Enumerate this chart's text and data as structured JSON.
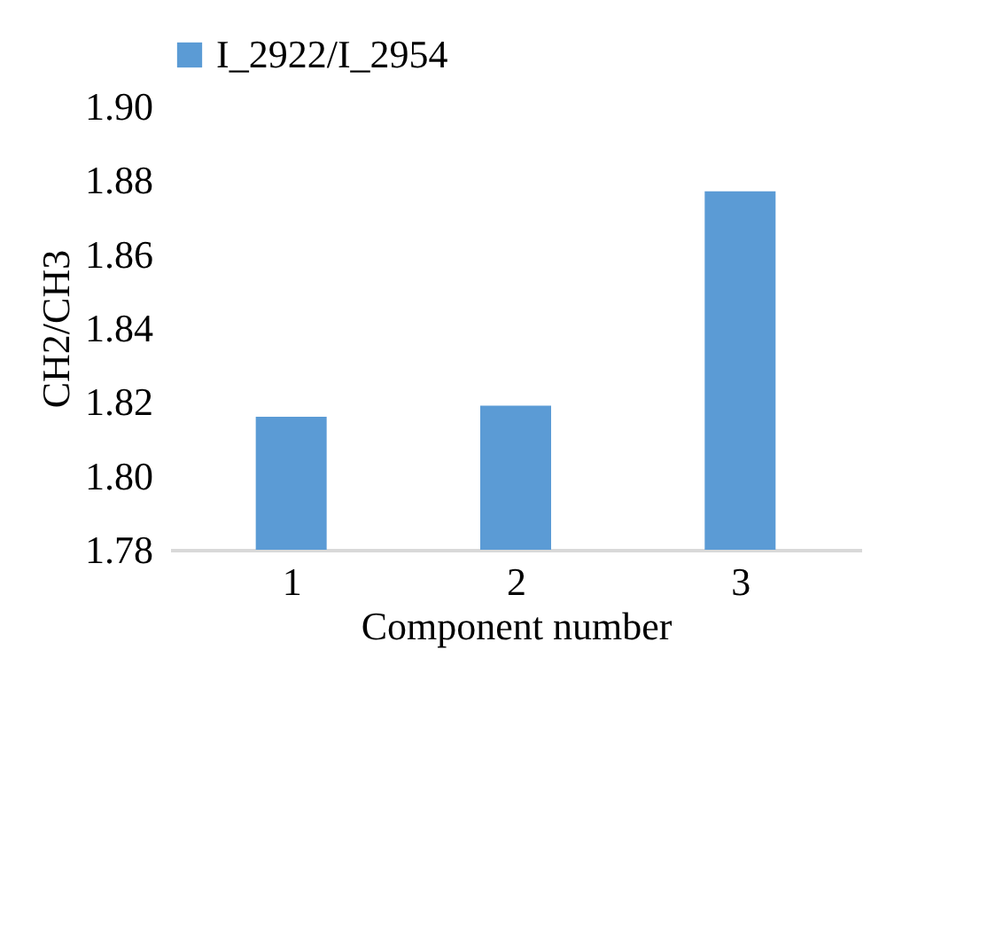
{
  "chart_data": {
    "type": "bar",
    "xlabel": "Component number",
    "ylabel": "CH2/CH3",
    "categories": [
      "1",
      "2",
      "3"
    ],
    "series": [
      {
        "name": "I_2922/I_2954",
        "color": "#5b9bd5",
        "values": [
          1.816,
          1.819,
          1.877
        ]
      }
    ],
    "ylim": [
      1.78,
      1.9
    ],
    "yticks": [
      1.78,
      {
        "value": 1.8,
        "label": "1.80"
      },
      1.82,
      1.84,
      1.86,
      1.88,
      {
        "value": 1.9,
        "label": "1.90"
      }
    ],
    "grid": false,
    "legend": "top"
  }
}
